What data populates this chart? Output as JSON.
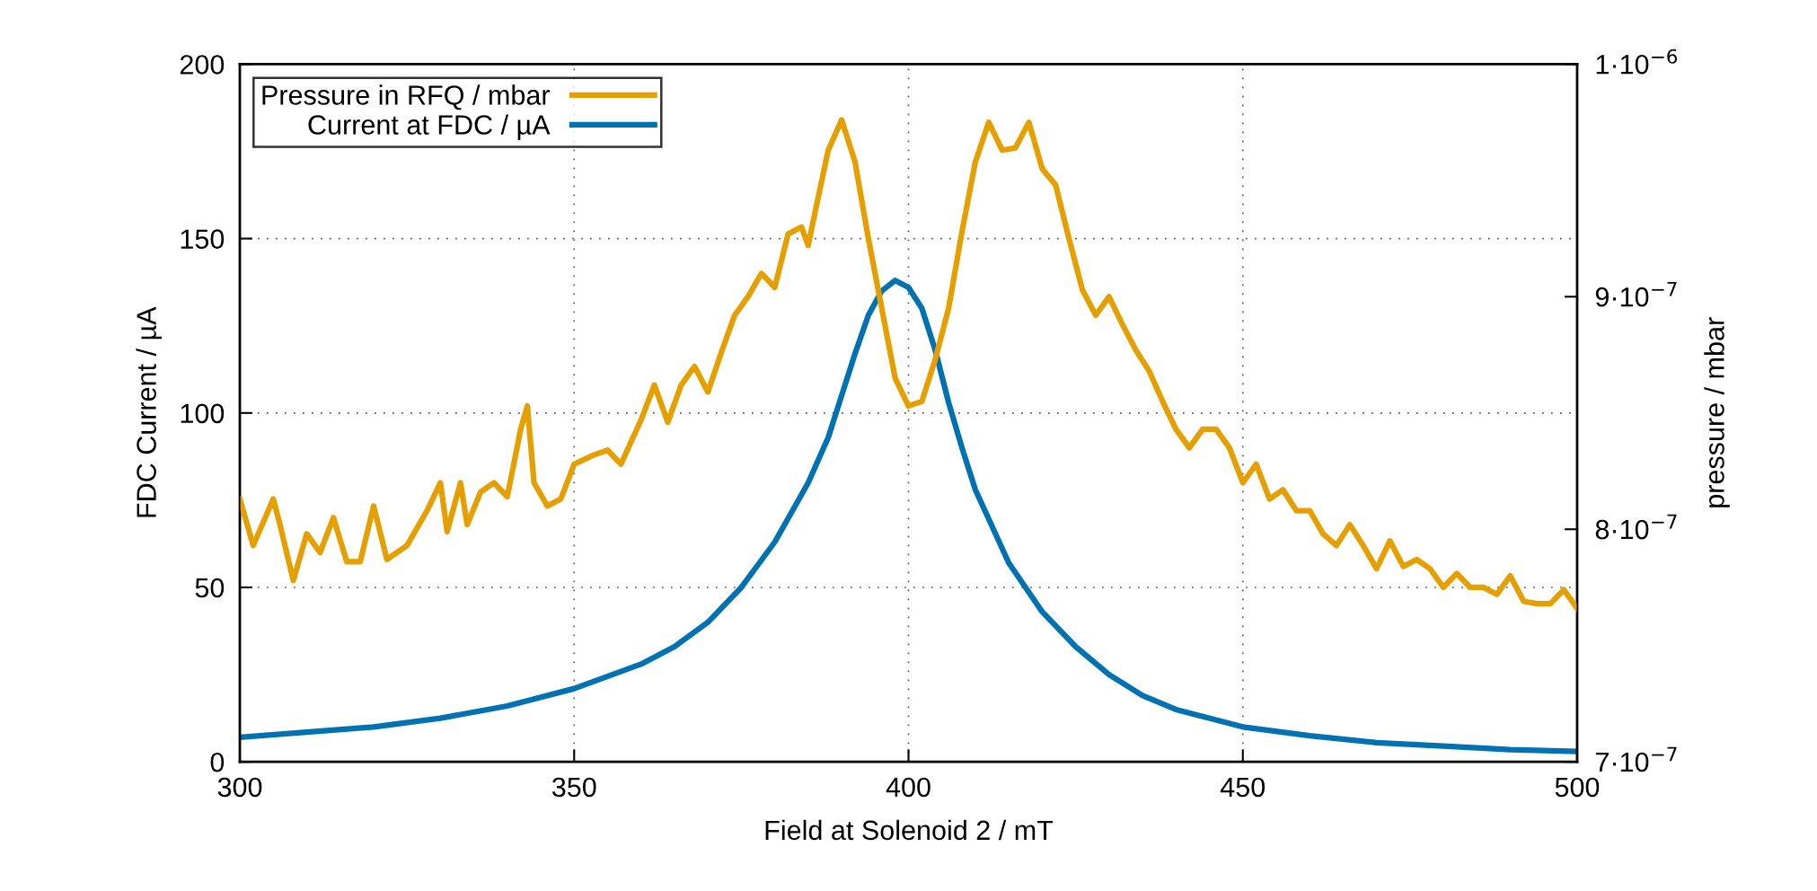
{
  "chart_data": {
    "type": "line",
    "xlabel": "Field at Solenoid 2 / mT",
    "ylabel": "FDC Current / µA",
    "y2label": "pressure / mbar",
    "xlim": [
      300,
      500
    ],
    "xticks": [
      300,
      350,
      400,
      450,
      500
    ],
    "ylim": [
      0,
      200
    ],
    "yticks": [
      0,
      50,
      100,
      150,
      200
    ],
    "y2lim": [
      7e-07,
      1e-06
    ],
    "y2ticks": [
      {
        "value": 7e-07,
        "label": "7·10$^{−7}$"
      },
      {
        "value": 8e-07,
        "label": "8·10$^{−7}$"
      },
      {
        "value": 9e-07,
        "label": "9·10$^{−7}$"
      },
      {
        "value": 1e-06,
        "label": "1·10$^{−6}$"
      }
    ],
    "grid": true,
    "legend": "top left",
    "line_style": "solid",
    "marker": "none",
    "series": [
      {
        "name": "Pressure in RFQ / mbar",
        "color": "#e69f00",
        "axis": "y2",
        "x": [
          300,
          302,
          305,
          306,
          308,
          310,
          312,
          314,
          316,
          318,
          320,
          322,
          325,
          328,
          330,
          331,
          333,
          334,
          336,
          338,
          340,
          342,
          343,
          344,
          346,
          348,
          350,
          353,
          355,
          357,
          360,
          362,
          364,
          366,
          368,
          370,
          372,
          374,
          376,
          378,
          380,
          382,
          384,
          385,
          386,
          388,
          390,
          392,
          394,
          396,
          398,
          400,
          402,
          404,
          406,
          408,
          410,
          412,
          414,
          416,
          418,
          420,
          422,
          424,
          426,
          428,
          430,
          432,
          434,
          436,
          438,
          440,
          442,
          444,
          446,
          448,
          450,
          452,
          454,
          456,
          458,
          460,
          462,
          464,
          466,
          468,
          470,
          472,
          474,
          476,
          478,
          480,
          482,
          484,
          486,
          488,
          490,
          492,
          494,
          496,
          498,
          500
        ],
        "values": [
          8.13e-07,
          7.93e-07,
          8.13e-07,
          8.02e-07,
          7.78e-07,
          7.98e-07,
          7.9e-07,
          8.05e-07,
          7.86e-07,
          7.86e-07,
          8.1e-07,
          7.87e-07,
          7.93e-07,
          8.08e-07,
          8.2e-07,
          7.99e-07,
          8.2e-07,
          8.02e-07,
          8.16e-07,
          8.2e-07,
          8.14e-07,
          8.43e-07,
          8.53e-07,
          8.2e-07,
          8.1e-07,
          8.13e-07,
          8.28e-07,
          8.32e-07,
          8.34e-07,
          8.28e-07,
          8.47e-07,
          8.62e-07,
          8.46e-07,
          8.62e-07,
          8.7e-07,
          8.59e-07,
          8.76e-07,
          8.92e-07,
          9e-07,
          9.1e-07,
          9.04e-07,
          9.27e-07,
          9.3e-07,
          9.22e-07,
          9.36e-07,
          9.63e-07,
          9.76e-07,
          9.58e-07,
          9.25e-07,
          8.95e-07,
          8.65e-07,
          8.53e-07,
          8.55e-07,
          8.73e-07,
          8.95e-07,
          9.28e-07,
          9.58e-07,
          9.75e-07,
          9.63e-07,
          9.64e-07,
          9.75e-07,
          9.55e-07,
          9.48e-07,
          9.25e-07,
          9.03e-07,
          8.92e-07,
          9e-07,
          8.88e-07,
          8.77e-07,
          8.68e-07,
          8.55e-07,
          8.43e-07,
          8.35e-07,
          8.43e-07,
          8.43e-07,
          8.35e-07,
          8.2e-07,
          8.28e-07,
          8.13e-07,
          8.17e-07,
          8.08e-07,
          8.08e-07,
          7.98e-07,
          7.93e-07,
          8.02e-07,
          7.93e-07,
          7.83e-07,
          7.95e-07,
          7.84e-07,
          7.87e-07,
          7.83e-07,
          7.75e-07,
          7.81e-07,
          7.75e-07,
          7.75e-07,
          7.72e-07,
          7.8e-07,
          7.69e-07,
          7.68e-07,
          7.68e-07,
          7.74e-07,
          7.66e-07
        ]
      },
      {
        "name": "Current at FDC / µA",
        "color": "#0072b2",
        "x": [
          300,
          310,
          320,
          330,
          340,
          350,
          360,
          365,
          370,
          375,
          380,
          385,
          388,
          390,
          392,
          394,
          396,
          398,
          400,
          402,
          404,
          406,
          408,
          410,
          415,
          420,
          425,
          430,
          435,
          440,
          450,
          460,
          470,
          480,
          490,
          500
        ],
        "values": [
          7,
          8.5,
          10,
          12.5,
          16,
          21,
          28,
          33,
          40,
          50,
          63,
          80,
          93,
          105,
          117,
          128,
          135,
          138,
          136,
          130,
          118,
          103,
          90,
          78,
          57,
          43,
          33,
          25,
          19,
          15,
          10,
          7.5,
          5.5,
          4.5,
          3.5,
          3
        ]
      }
    ]
  }
}
